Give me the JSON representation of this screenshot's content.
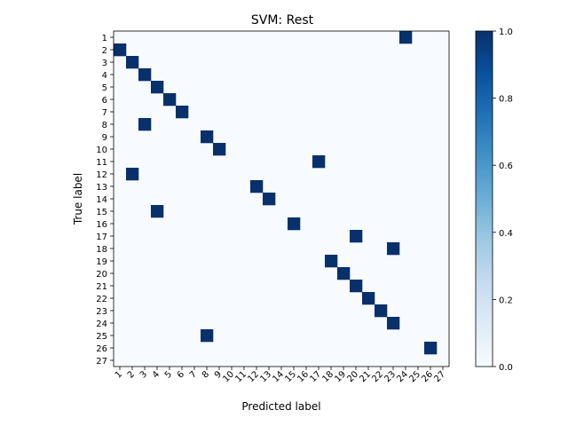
{
  "chart_data": {
    "type": "heatmap",
    "title": "SVM: Rest",
    "xlabel": "Predicted label",
    "ylabel": "True label",
    "row_labels": [
      "1",
      "2",
      "3",
      "4",
      "5",
      "6",
      "7",
      "8",
      "9",
      "10",
      "11",
      "12",
      "13",
      "14",
      "15",
      "16",
      "17",
      "18",
      "19",
      "20",
      "21",
      "22",
      "23",
      "24",
      "25",
      "26",
      "27"
    ],
    "col_labels": [
      "1",
      "2",
      "3",
      "4",
      "5",
      "6",
      "7",
      "8",
      "9",
      "10",
      "11",
      "12",
      "13",
      "14",
      "15",
      "16",
      "17",
      "18",
      "19",
      "20",
      "21",
      "22",
      "23",
      "24",
      "25",
      "26",
      "27"
    ],
    "cells": [
      {
        "true": "1",
        "pred": "24",
        "value": 1.0
      },
      {
        "true": "2",
        "pred": "1",
        "value": 1.0
      },
      {
        "true": "3",
        "pred": "2",
        "value": 1.0
      },
      {
        "true": "4",
        "pred": "3",
        "value": 1.0
      },
      {
        "true": "5",
        "pred": "4",
        "value": 1.0
      },
      {
        "true": "6",
        "pred": "5",
        "value": 1.0
      },
      {
        "true": "7",
        "pred": "6",
        "value": 1.0
      },
      {
        "true": "8",
        "pred": "3",
        "value": 1.0
      },
      {
        "true": "9",
        "pred": "8",
        "value": 1.0
      },
      {
        "true": "10",
        "pred": "9",
        "value": 1.0
      },
      {
        "true": "11",
        "pred": "17",
        "value": 1.0
      },
      {
        "true": "12",
        "pred": "2",
        "value": 1.0
      },
      {
        "true": "13",
        "pred": "12",
        "value": 1.0
      },
      {
        "true": "14",
        "pred": "13",
        "value": 1.0
      },
      {
        "true": "15",
        "pred": "4",
        "value": 1.0
      },
      {
        "true": "16",
        "pred": "15",
        "value": 1.0
      },
      {
        "true": "17",
        "pred": "20",
        "value": 1.0
      },
      {
        "true": "18",
        "pred": "23",
        "value": 1.0
      },
      {
        "true": "19",
        "pred": "18",
        "value": 1.0
      },
      {
        "true": "20",
        "pred": "19",
        "value": 1.0
      },
      {
        "true": "21",
        "pred": "20",
        "value": 1.0
      },
      {
        "true": "22",
        "pred": "21",
        "value": 1.0
      },
      {
        "true": "23",
        "pred": "22",
        "value": 1.0
      },
      {
        "true": "24",
        "pred": "23",
        "value": 1.0
      },
      {
        "true": "25",
        "pred": "8",
        "value": 1.0
      },
      {
        "true": "26",
        "pred": "26",
        "value": 1.0
      }
    ],
    "background_value": 0.0,
    "colorbar": {
      "range": [
        0.0,
        1.0
      ],
      "ticks": [
        "0.0",
        "0.2",
        "0.4",
        "0.6",
        "0.8",
        "1.0"
      ],
      "low_color": "#f7fbff",
      "high_color": "#08306b",
      "colormap": "Blues"
    }
  }
}
